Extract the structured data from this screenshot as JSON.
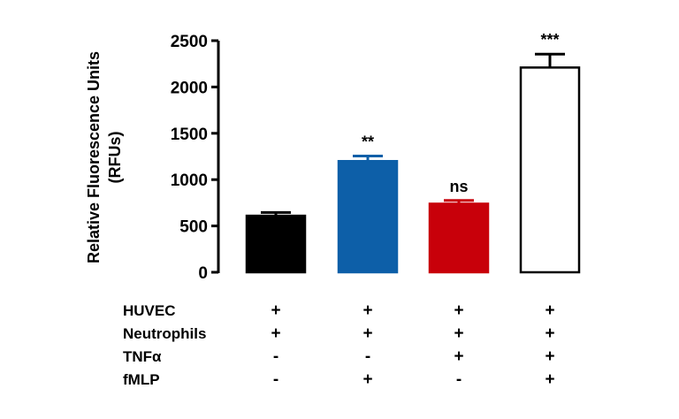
{
  "chart_data": {
    "type": "bar",
    "ylabel": [
      "Relative Fluorescence Units",
      "(RFUs)"
    ],
    "ylim": [
      0,
      2500
    ],
    "yticks": [
      0,
      500,
      1000,
      1500,
      2000,
      2500
    ],
    "grid": false,
    "bars": [
      {
        "value": 610,
        "error": 35,
        "significance": "",
        "fill": "#000000"
      },
      {
        "value": 1200,
        "error": 55,
        "significance": "**",
        "fill": "#0d5fa8"
      },
      {
        "value": 740,
        "error": 35,
        "significance": "ns",
        "fill": "#c8000a"
      },
      {
        "value": 2210,
        "error": 145,
        "significance": "***",
        "fill": "#ffffff"
      }
    ],
    "conditions": [
      {
        "label": "HUVEC",
        "signs": [
          "+",
          "+",
          "+",
          "+"
        ]
      },
      {
        "label": "Neutrophils",
        "signs": [
          "+",
          "+",
          "+",
          "+"
        ]
      },
      {
        "label": "TNFα",
        "signs": [
          "-",
          "-",
          "+",
          "+"
        ]
      },
      {
        "label": "fMLP",
        "signs": [
          "-",
          "+",
          "-",
          "+"
        ]
      }
    ]
  }
}
